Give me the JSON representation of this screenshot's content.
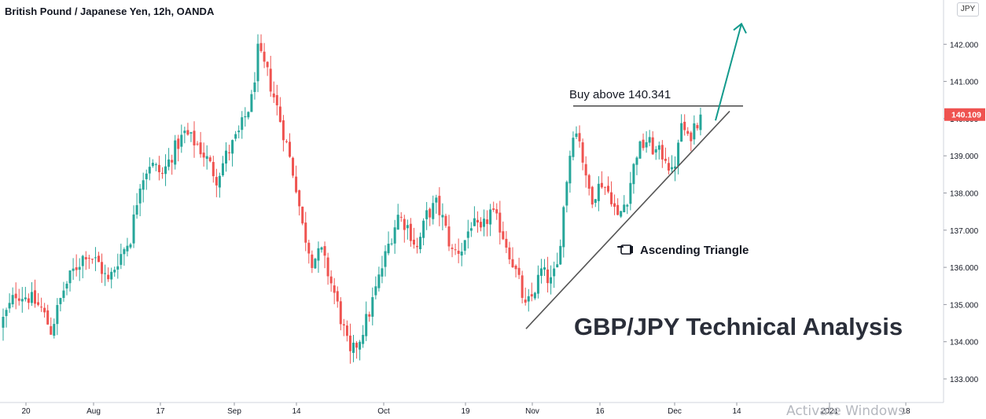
{
  "symbol_title": "British Pound / Japanese Yen, 12h, OANDA",
  "currency_badge": "JPY",
  "annotations": {
    "buy_label": "Buy above 140.341",
    "pattern_label": "Ascending Triangle",
    "pattern_icon": "pointing-hand-icon",
    "main_title": "GBP/JPY Technical Analysis"
  },
  "watermark": "Activate Windows",
  "colors": {
    "up": "#26a69a",
    "down": "#ef5350",
    "arrow": "#129a8c",
    "price_tag": "#ef5350",
    "lines": "#555555"
  },
  "chart_data": {
    "type": "candlestick",
    "title": "British Pound / Japanese Yen, 12h, OANDA",
    "ylim": [
      132.75,
      143.0
    ],
    "y_ticks": [
      "133.000",
      "134.000",
      "135.000",
      "136.000",
      "137.000",
      "138.000",
      "139.000",
      "140.000",
      "141.000",
      "142.000"
    ],
    "x_ticks": [
      "20",
      "Aug",
      "17",
      "Sep",
      "14",
      "Oct",
      "19",
      "Nov",
      "16",
      "Dec",
      "14",
      "2021",
      "18"
    ],
    "last_price": "140.109",
    "resistance_level": 140.341,
    "support_line": {
      "start": {
        "label": "Oct 30",
        "price": 134.35
      },
      "end": {
        "label": "Dec 9",
        "price": 140.2
      }
    },
    "breakout_target_arrow": {
      "from_price": 139.95,
      "to_price": 142.55
    },
    "grid": false,
    "close_path": [
      [
        0,
        134.6
      ],
      [
        4,
        135.3
      ],
      [
        8,
        135.2
      ],
      [
        12,
        134.9
      ],
      [
        15,
        134.3
      ],
      [
        19,
        135.4
      ],
      [
        22,
        135.9
      ],
      [
        26,
        136.4
      ],
      [
        30,
        136.1
      ],
      [
        33,
        135.6
      ],
      [
        36,
        136.2
      ],
      [
        40,
        136.8
      ],
      [
        43,
        138.3
      ],
      [
        46,
        138.8
      ],
      [
        50,
        138.5
      ],
      [
        54,
        139.2
      ],
      [
        57,
        139.6
      ],
      [
        61,
        139.3
      ],
      [
        64,
        138.9
      ],
      [
        67,
        138.4
      ],
      [
        70,
        139.0
      ],
      [
        74,
        139.6
      ],
      [
        78,
        140.5
      ],
      [
        80,
        141.8
      ],
      [
        83,
        141.2
      ],
      [
        86,
        140.3
      ],
      [
        89,
        139.3
      ],
      [
        92,
        138.2
      ],
      [
        94,
        137.1
      ],
      [
        97,
        136.2
      ],
      [
        100,
        136.4
      ],
      [
        104,
        135.3
      ],
      [
        107,
        134.3
      ],
      [
        109,
        133.6
      ],
      [
        112,
        134.1
      ],
      [
        115,
        134.8
      ],
      [
        118,
        135.7
      ],
      [
        121,
        136.6
      ],
      [
        124,
        137.4
      ],
      [
        127,
        137.1
      ],
      [
        130,
        136.5
      ],
      [
        133,
        137.4
      ],
      [
        136,
        137.7
      ],
      [
        138,
        137.3
      ],
      [
        141,
        136.4
      ],
      [
        144,
        136.5
      ],
      [
        147,
        137.2
      ],
      [
        150,
        136.9
      ],
      [
        153,
        137.5
      ],
      [
        156,
        137.1
      ],
      [
        159,
        136.4
      ],
      [
        162,
        135.6
      ],
      [
        164,
        134.9
      ],
      [
        166,
        135.2
      ],
      [
        169,
        135.9
      ],
      [
        172,
        135.6
      ],
      [
        174,
        136.0
      ],
      [
        177,
        138.4
      ],
      [
        179,
        139.7
      ],
      [
        181,
        139.5
      ],
      [
        183,
        138.3
      ],
      [
        185,
        137.9
      ],
      [
        188,
        138.3
      ],
      [
        191,
        137.9
      ],
      [
        193,
        137.3
      ],
      [
        196,
        137.9
      ],
      [
        199,
        139.1
      ],
      [
        202,
        139.4
      ],
      [
        205,
        139.1
      ],
      [
        208,
        139.0
      ],
      [
        210,
        138.5
      ],
      [
        212,
        139.2
      ],
      [
        213,
        139.9
      ],
      [
        215,
        139.4
      ],
      [
        217,
        139.8
      ],
      [
        219,
        140.109
      ]
    ]
  }
}
